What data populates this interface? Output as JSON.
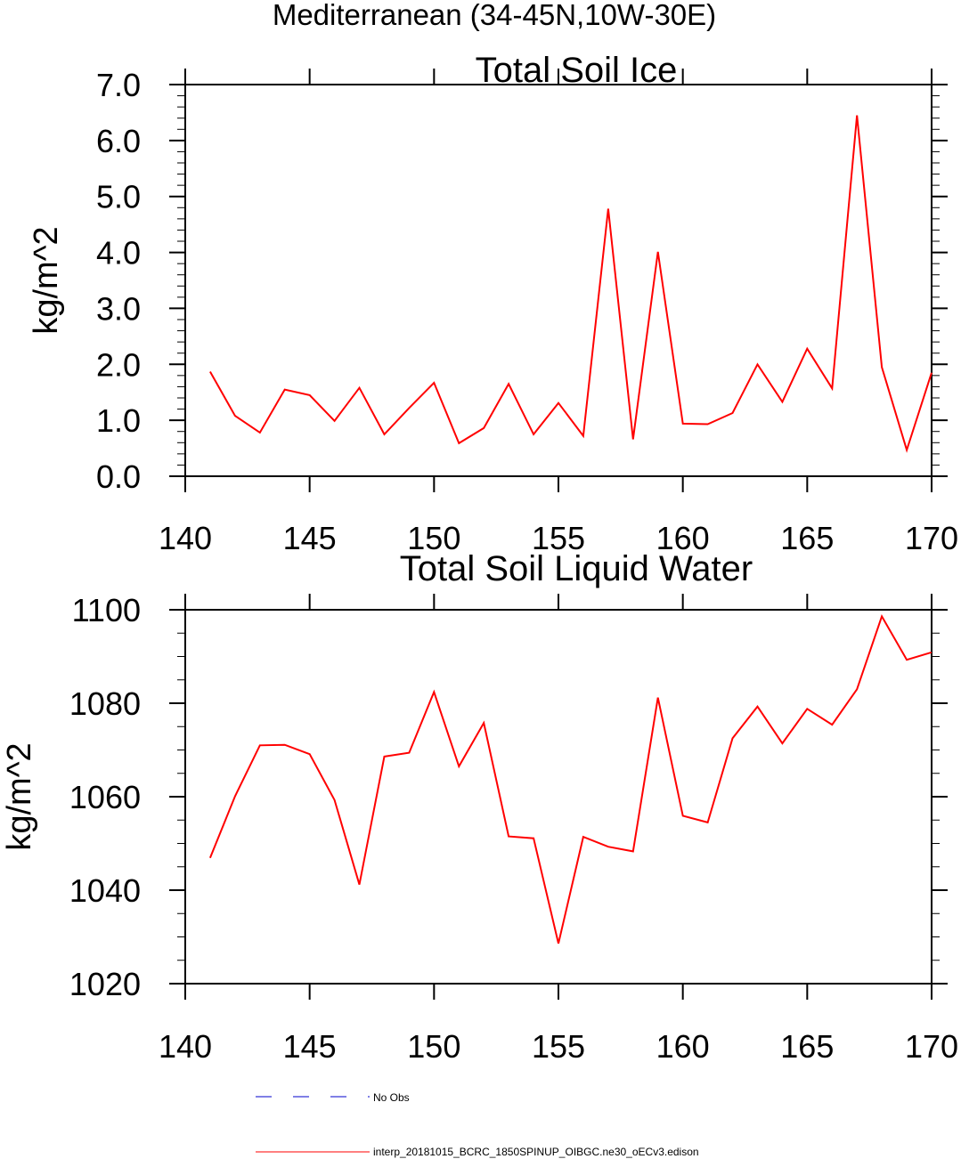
{
  "figure": {
    "title": "Mediterranean (34-45N,10W-30E)"
  },
  "legend": {
    "entries": [
      {
        "label": "No Obs",
        "color": "#0000cc",
        "style": "dashed"
      },
      {
        "label": "interp_20181015_BCRC_1850SPINUP_OIBGC.ne30_oECv3.edison",
        "color": "#ff0000",
        "style": "solid"
      }
    ]
  },
  "chart_data": [
    {
      "type": "line",
      "title": "Total Soil Ice",
      "xlabel": "",
      "ylabel": "kg/m^2",
      "xlim": [
        140,
        170
      ],
      "ylim": [
        0,
        7
      ],
      "x_ticks": [
        "140",
        "145",
        "150",
        "155",
        "160",
        "165",
        "170"
      ],
      "y_ticks": [
        "0.0",
        "1.0",
        "2.0",
        "3.0",
        "4.0",
        "5.0",
        "6.0",
        "7.0"
      ],
      "grid": false,
      "series": [
        {
          "name": "interp_20181015_BCRC_1850SPINUP_OIBGC.ne30_oECv3.edison",
          "color": "#ff0000",
          "x": [
            141,
            142,
            143,
            144,
            145,
            146,
            147,
            148,
            149,
            150,
            151,
            152,
            153,
            154,
            155,
            156,
            157,
            158,
            159,
            160,
            161,
            162,
            163,
            164,
            165,
            166,
            167,
            168,
            169,
            170
          ],
          "values": [
            1.87,
            1.08,
            0.78,
            1.55,
            1.45,
            0.99,
            1.58,
            0.75,
            1.22,
            1.67,
            0.59,
            0.86,
            1.65,
            0.75,
            1.31,
            0.72,
            4.78,
            0.66,
            4.01,
            0.94,
            0.93,
            1.13,
            2.0,
            1.33,
            2.28,
            1.57,
            6.45,
            1.95,
            0.47,
            1.85
          ]
        }
      ]
    },
    {
      "type": "line",
      "title": "Total Soil Liquid Water",
      "xlabel": "",
      "ylabel": "kg/m^2",
      "xlim": [
        140,
        170
      ],
      "ylim": [
        1020,
        1100
      ],
      "x_ticks": [
        "140",
        "145",
        "150",
        "155",
        "160",
        "165",
        "170"
      ],
      "y_ticks": [
        "1020",
        "1040",
        "1060",
        "1080",
        "1100"
      ],
      "grid": false,
      "series": [
        {
          "name": "interp_20181015_BCRC_1850SPINUP_OIBGC.ne30_oECv3.edison",
          "color": "#ff0000",
          "x": [
            141,
            142,
            143,
            144,
            145,
            146,
            147,
            148,
            149,
            150,
            151,
            152,
            153,
            154,
            155,
            156,
            157,
            158,
            159,
            160,
            161,
            162,
            163,
            164,
            165,
            166,
            167,
            168,
            169,
            170
          ],
          "values": [
            1046.9,
            1060.1,
            1071.0,
            1071.1,
            1069.1,
            1059.3,
            1041.2,
            1068.6,
            1069.4,
            1082.4,
            1066.5,
            1075.8,
            1051.5,
            1051.1,
            1028.6,
            1051.4,
            1049.3,
            1048.3,
            1081.2,
            1055.9,
            1054.5,
            1072.5,
            1079.3,
            1071.4,
            1078.8,
            1075.4,
            1083.0,
            1098.6,
            1089.3,
            1090.9
          ]
        }
      ]
    }
  ]
}
